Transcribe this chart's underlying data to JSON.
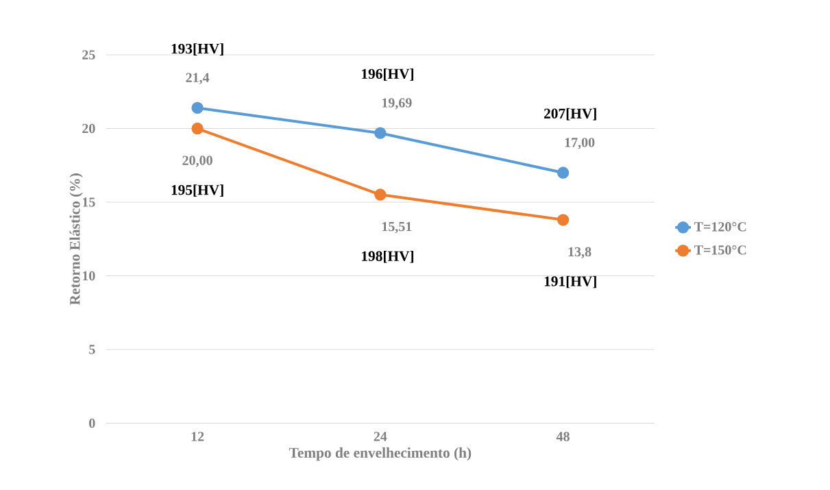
{
  "chart_data": {
    "type": "line",
    "xlabel": "Tempo de envelhecimento (h)",
    "ylabel": "Retorno Elástico (%)",
    "categories": [
      "12",
      "24",
      "48"
    ],
    "series": [
      {
        "name": "T=120°C",
        "color": "#5b9bd5",
        "values": [
          21.4,
          19.69,
          17.0
        ],
        "value_labels": [
          "21,4",
          "19,69",
          "17,00"
        ]
      },
      {
        "name": "T=150°C",
        "color": "#ed7d31",
        "values": [
          20.0,
          15.51,
          13.8
        ],
        "value_labels": [
          "20,00",
          "15,51",
          "13,8"
        ]
      }
    ],
    "ylim": [
      0,
      25
    ],
    "yticks": [
      0,
      5,
      10,
      15,
      20,
      25
    ],
    "grid": "y",
    "legend": "right",
    "marker": "circle",
    "line_style": "solid",
    "annotations": [
      "193[HV]",
      "195[HV]",
      "196[HV]",
      "198[HV]",
      "207[HV]",
      "191[HV]"
    ]
  }
}
